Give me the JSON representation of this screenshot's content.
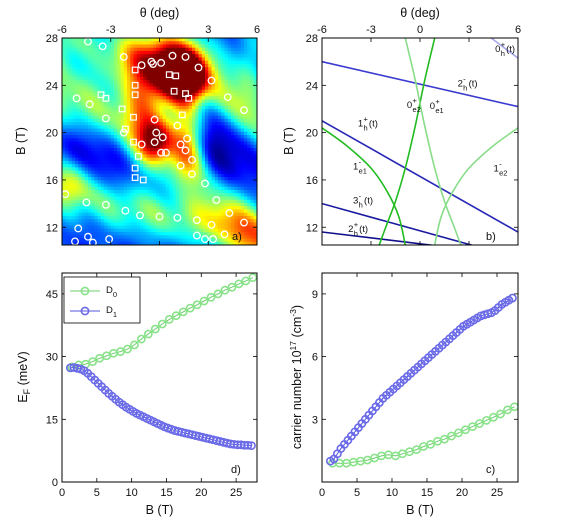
{
  "chart_data": [
    {
      "type": "heatmap",
      "panel_label": "a)",
      "xlabel": "θ (deg)",
      "ylabel": "B (T)",
      "xlim": [
        -6,
        6
      ],
      "ylim": [
        10.5,
        28
      ],
      "xticks": [
        "-6",
        "-3",
        "0",
        "3",
        "6"
      ],
      "yticks": [
        "12",
        "16",
        "20",
        "24",
        "28"
      ],
      "colormap": "jet",
      "markers": {
        "circles": [
          [
            -4.4,
            27.7
          ],
          [
            -3.5,
            27.3
          ],
          [
            -2.2,
            26.4
          ],
          [
            -1.1,
            25.7
          ],
          [
            0.1,
            25.9
          ],
          [
            0.8,
            26.5
          ],
          [
            1.6,
            26.4
          ],
          [
            2.4,
            25.5
          ],
          [
            3.2,
            24.4
          ],
          [
            4.2,
            23.0
          ],
          [
            5.2,
            21.9
          ],
          [
            -5.1,
            22.9
          ],
          [
            -4.3,
            22.4
          ],
          [
            -3.3,
            21.2
          ],
          [
            -2.2,
            20.0
          ],
          [
            -1.1,
            19.0
          ],
          [
            -0.3,
            19.2
          ],
          [
            0.4,
            18.3
          ],
          [
            1.3,
            17.2
          ],
          [
            2.0,
            16.5
          ],
          [
            2.8,
            15.7
          ],
          [
            3.5,
            14.3
          ],
          [
            4.3,
            13.2
          ],
          [
            5.2,
            12.4
          ],
          [
            -5.8,
            14.8
          ],
          [
            -4.5,
            14.1
          ],
          [
            -3.3,
            13.9
          ],
          [
            -2.1,
            13.4
          ],
          [
            -1.2,
            13.0
          ],
          [
            0.0,
            12.9
          ],
          [
            1.1,
            12.8
          ],
          [
            2.3,
            12.6
          ],
          [
            3.2,
            12.2
          ],
          [
            4.0,
            11.4
          ],
          [
            -5.0,
            11.9
          ],
          [
            -4.4,
            11.2
          ],
          [
            -3.1,
            11.0
          ],
          [
            2.3,
            11.3
          ],
          [
            2.8,
            11.0
          ],
          [
            3.3,
            11.0
          ],
          [
            -4.1,
            10.7
          ],
          [
            -5.2,
            10.8
          ],
          [
            -0.3,
            21.1
          ],
          [
            -0.2,
            20.0
          ],
          [
            0.2,
            19.6
          ],
          [
            0.1,
            18.3
          ],
          [
            1.1,
            20.6
          ],
          [
            1.3,
            19.0
          ],
          [
            1.7,
            19.5
          ],
          [
            1.6,
            18.5
          ],
          [
            2.0,
            17.7
          ],
          [
            -0.5,
            26.0
          ],
          [
            -0.4,
            25.8
          ]
        ],
        "squares": [
          [
            -1.5,
            25.3
          ],
          [
            -1.5,
            24.0
          ],
          [
            -1.5,
            23.2
          ],
          [
            -2.3,
            22.0
          ],
          [
            -3.3,
            22.9
          ],
          [
            -3.6,
            23.2
          ],
          [
            -1.6,
            21.3
          ],
          [
            -2.1,
            20.3
          ],
          [
            -1.6,
            19.2
          ],
          [
            -1.3,
            18.0
          ],
          [
            -1.0,
            16.0
          ],
          [
            -1.5,
            16.2
          ],
          [
            -1.5,
            17.0
          ],
          [
            1.0,
            24.8
          ],
          [
            1.8,
            22.9
          ],
          [
            0.9,
            23.5
          ],
          [
            1.4,
            21.5
          ],
          [
            0.6,
            24.9
          ],
          [
            1.6,
            23.3
          ]
        ]
      }
    },
    {
      "type": "line",
      "panel_label": "b)",
      "xlabel": "θ (deg)",
      "ylabel": "B (T)",
      "xlim": [
        -6,
        6
      ],
      "ylim": [
        10.5,
        28
      ],
      "xticks": [
        "-6",
        "-3",
        "0",
        "3",
        "6"
      ],
      "yticks": [
        "12",
        "16",
        "20",
        "24",
        "28"
      ],
      "labels": [
        {
          "main": "0",
          "sup": "+",
          "sub": "h",
          "tail": "(t)",
          "at": [
            4.6,
            26.8
          ]
        },
        {
          "main": "2",
          "sup": "-",
          "sub": "h",
          "tail": "(t)",
          "at": [
            2.3,
            23.9
          ]
        },
        {
          "main": "0",
          "sup": "+",
          "sub": "e2",
          "tail": "",
          "at": [
            -0.8,
            22.1
          ]
        },
        {
          "main": "0",
          "sup": "+",
          "sub": "e1",
          "tail": "",
          "at": [
            0.6,
            22.0
          ]
        },
        {
          "main": "1",
          "sup": "+",
          "sub": "h",
          "tail": "(t)",
          "at": [
            -3.8,
            20.5
          ]
        },
        {
          "main": "1",
          "sup": "-",
          "sub": "e1",
          "tail": "",
          "at": [
            -4.1,
            16.9
          ]
        },
        {
          "main": "1",
          "sup": "-",
          "sub": "e2",
          "tail": "",
          "at": [
            4.5,
            16.7
          ]
        },
        {
          "main": "3",
          "sup": "-",
          "sub": "h",
          "tail": "(t)",
          "at": [
            -4.1,
            14.0
          ]
        },
        {
          "main": "2",
          "sup": "+",
          "sub": "h",
          "tail": "(t)",
          "at": [
            -4.4,
            11.6
          ]
        }
      ],
      "series": [
        {
          "color": "#3a3ad0",
          "type": "straight",
          "points": [
            [
              -6,
              26.0
            ],
            [
              6,
              22.2
            ]
          ]
        },
        {
          "color": "#2828b8",
          "type": "straight",
          "points": [
            [
              -6,
              21.0
            ],
            [
              6,
              11.6
            ]
          ]
        },
        {
          "color": "#1a1aa0",
          "type": "straight",
          "points": [
            [
              -6,
              14.0
            ],
            [
              6,
              9.4
            ]
          ]
        },
        {
          "color": "#10108a",
          "type": "straight",
          "points": [
            [
              -6,
              11.6
            ],
            [
              6,
              9.6
            ]
          ]
        },
        {
          "color": "#a8a8ee",
          "type": "straight",
          "points": [
            [
              3.4,
              29.0
            ],
            [
              6,
              26.3
            ]
          ]
        },
        {
          "color": "#22bb22",
          "type": "curve",
          "points": [
            [
              -6,
              20.4
            ],
            [
              -4.5,
              18.9
            ],
            [
              -3,
              17.0
            ],
            [
              -2,
              15.0
            ],
            [
              -1.3,
              12.9
            ],
            [
              -0.9,
              10.5
            ]
          ]
        },
        {
          "color": "#22bb22",
          "type": "curve",
          "points": [
            [
              0.9,
              28.0
            ],
            [
              0.3,
              24.5
            ],
            [
              -0.3,
              20.5
            ],
            [
              -0.9,
              17.0
            ],
            [
              -1.5,
              14.2
            ],
            [
              -2.1,
              12.0
            ],
            [
              -2.5,
              10.5
            ]
          ]
        },
        {
          "color": "#88dd88",
          "type": "curve",
          "points": [
            [
              -0.9,
              28.0
            ],
            [
              -0.3,
              24.5
            ],
            [
              0.3,
              20.5
            ],
            [
              0.9,
              17.0
            ],
            [
              1.5,
              14.2
            ],
            [
              2.1,
              12.0
            ],
            [
              2.5,
              10.5
            ]
          ]
        },
        {
          "color": "#88dd88",
          "type": "curve",
          "points": [
            [
              6,
              20.4
            ],
            [
              4.5,
              18.9
            ],
            [
              3,
              17.0
            ],
            [
              2,
              15.0
            ],
            [
              1.3,
              12.9
            ],
            [
              0.9,
              10.5
            ]
          ]
        }
      ]
    },
    {
      "type": "line",
      "panel_label": "d)",
      "xlabel": "B (T)",
      "ylabel": "E_F (meV)",
      "xlim": [
        0,
        28
      ],
      "ylim": [
        0,
        50
      ],
      "xticks": [
        "0",
        "5",
        "10",
        "15",
        "20",
        "25"
      ],
      "yticks": [
        "0",
        "15",
        "30",
        "45"
      ],
      "legend_position": "top-left",
      "series": [
        {
          "name": "D0",
          "color": "#88e288",
          "stroke": "#6ccc6c",
          "x": [
            1.4,
            2.4,
            3.4,
            4.4,
            5.4,
            6.4,
            7.4,
            8.4,
            9.4,
            10.4,
            11.4,
            12.4,
            13.4,
            14.4,
            15.4,
            16.4,
            17.4,
            18.4,
            19.4,
            20.4,
            21.4,
            22.4,
            23.4,
            24.4,
            25.4,
            26.4,
            27.4
          ],
          "y": [
            27.5,
            28.0,
            28.2,
            28.8,
            29.6,
            30.2,
            30.8,
            31.2,
            31.8,
            32.8,
            34.2,
            35.4,
            36.6,
            37.8,
            38.9,
            39.8,
            40.7,
            41.6,
            42.4,
            43.3,
            44.2,
            45.0,
            45.9,
            46.6,
            47.4,
            48.1,
            48.9
          ]
        },
        {
          "name": "D1",
          "color": "#6a6ae8",
          "stroke": "#5555dd",
          "x": [
            1.2,
            1.7,
            2.2,
            2.7,
            3.2,
            3.7,
            4.2,
            4.7,
            5.2,
            5.7,
            6.2,
            6.7,
            7.2,
            7.7,
            8.2,
            8.7,
            9.2,
            9.7,
            10.2,
            10.7,
            11.2,
            11.7,
            12.2,
            12.7,
            13.2,
            13.7,
            14.2,
            14.7,
            15.2,
            15.7,
            16.2,
            16.7,
            17.2,
            17.7,
            18.2,
            18.7,
            19.2,
            19.7,
            20.2,
            20.7,
            21.2,
            21.7,
            22.2,
            22.7,
            23.2,
            23.7,
            24.2,
            24.7,
            25.2,
            25.7,
            26.2,
            26.7,
            27.2
          ],
          "y": [
            27.3,
            27.4,
            27.2,
            27.0,
            26.6,
            26.0,
            25.2,
            24.4,
            23.6,
            22.8,
            22.0,
            21.2,
            20.5,
            19.8,
            19.1,
            18.5,
            17.9,
            17.4,
            16.9,
            16.4,
            16.0,
            15.6,
            15.2,
            14.8,
            14.4,
            14.0,
            13.6,
            13.2,
            12.9,
            12.6,
            12.3,
            12.1,
            11.9,
            11.7,
            11.5,
            11.3,
            11.1,
            10.9,
            10.7,
            10.5,
            10.3,
            10.1,
            9.9,
            9.7,
            9.5,
            9.3,
            9.1,
            9.0,
            8.9,
            8.9,
            8.8,
            8.8,
            8.7
          ]
        }
      ]
    },
    {
      "type": "line",
      "panel_label": "c)",
      "xlabel": "B (T)",
      "ylabel": "carrier number 10^17 (cm^-3)",
      "xlim": [
        0,
        28
      ],
      "ylim": [
        0,
        10
      ],
      "xticks": [
        "0",
        "5",
        "10",
        "15",
        "20",
        "25"
      ],
      "yticks": [
        "3",
        "6",
        "9"
      ],
      "series": [
        {
          "name": "D0",
          "color": "#88e288",
          "stroke": "#6ccc6c",
          "x": [
            1.5,
            2.5,
            3.5,
            4.5,
            5.5,
            6.5,
            7.5,
            8.5,
            9.5,
            10.5,
            11.5,
            12.5,
            13.5,
            14.5,
            15.5,
            16.5,
            17.5,
            18.5,
            19.5,
            20.5,
            21.5,
            22.5,
            23.5,
            24.5,
            25.5,
            26.5,
            27.5
          ],
          "y": [
            0.9,
            0.9,
            0.9,
            0.95,
            1.0,
            1.05,
            1.15,
            1.25,
            1.3,
            1.25,
            1.35,
            1.45,
            1.55,
            1.7,
            1.8,
            1.95,
            2.05,
            2.2,
            2.35,
            2.5,
            2.65,
            2.8,
            2.95,
            3.1,
            3.25,
            3.45,
            3.6
          ]
        },
        {
          "name": "D1",
          "color": "#6a6ae8",
          "stroke": "#5555dd",
          "x": [
            1.2,
            1.7,
            2.2,
            2.7,
            3.2,
            3.7,
            4.2,
            4.7,
            5.2,
            5.7,
            6.2,
            6.7,
            7.2,
            7.7,
            8.2,
            8.7,
            9.2,
            9.7,
            10.2,
            10.7,
            11.2,
            11.7,
            12.2,
            12.7,
            13.2,
            13.7,
            14.2,
            14.7,
            15.2,
            15.7,
            16.2,
            16.7,
            17.2,
            17.7,
            18.2,
            18.7,
            19.2,
            19.7,
            20.2,
            20.7,
            21.2,
            21.7,
            22.2,
            22.7,
            23.2,
            23.7,
            24.2,
            24.7,
            25.2,
            25.7,
            26.2,
            26.7,
            27.2
          ],
          "y": [
            1.0,
            1.1,
            1.35,
            1.6,
            1.8,
            2.0,
            2.2,
            2.4,
            2.6,
            2.8,
            3.0,
            3.2,
            3.4,
            3.6,
            3.8,
            4.0,
            4.15,
            4.3,
            4.45,
            4.6,
            4.75,
            4.9,
            5.05,
            5.2,
            5.35,
            5.5,
            5.65,
            5.8,
            5.95,
            6.1,
            6.25,
            6.4,
            6.55,
            6.7,
            6.85,
            7.0,
            7.15,
            7.3,
            7.45,
            7.55,
            7.65,
            7.75,
            7.85,
            7.95,
            8.0,
            8.05,
            8.1,
            8.2,
            8.35,
            8.5,
            8.6,
            8.7,
            8.8
          ]
        }
      ]
    }
  ]
}
